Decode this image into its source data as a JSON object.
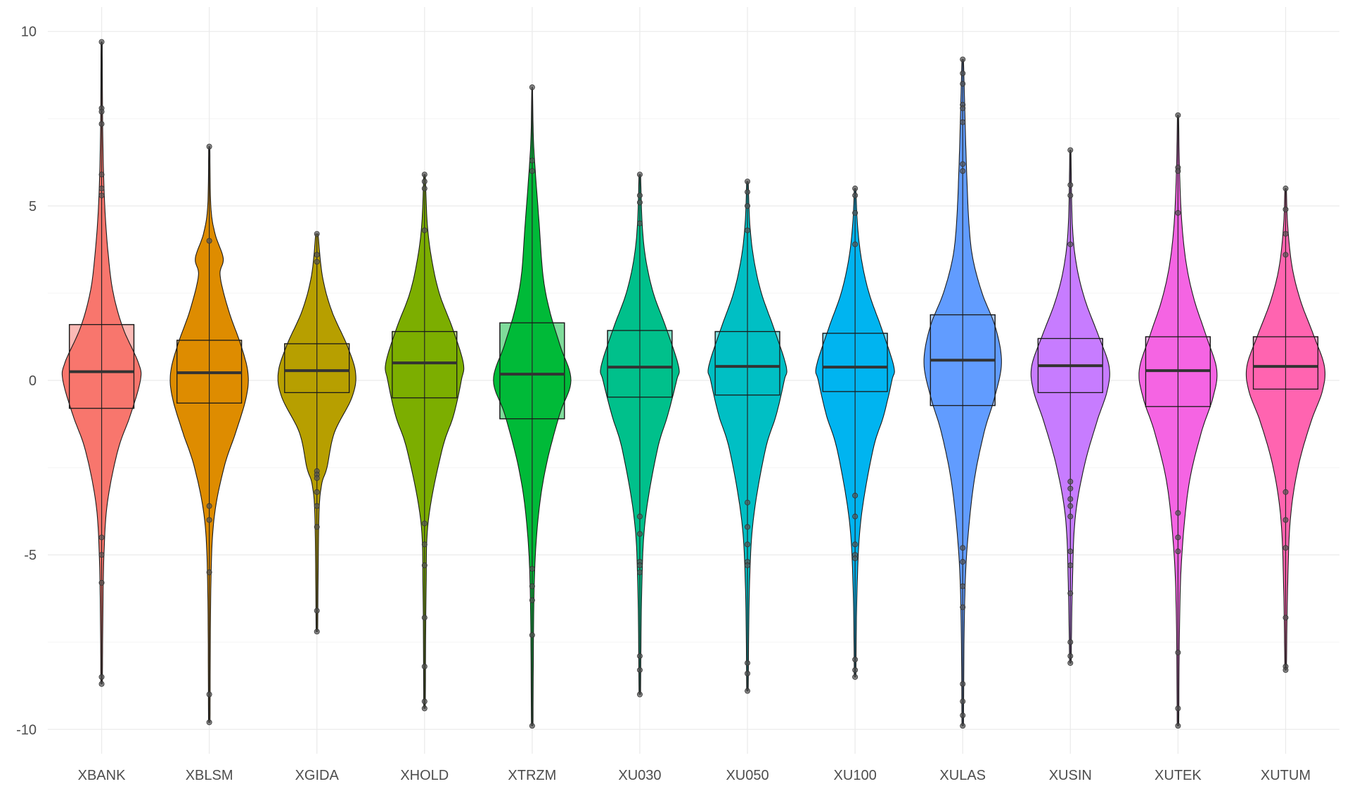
{
  "chart_data": {
    "type": "violin",
    "overlay": [
      "boxplot",
      "jitter-points"
    ],
    "title": "",
    "xlabel": "",
    "ylabel": "",
    "ylim": [
      -10.7,
      10.7
    ],
    "yticks": [
      -10,
      -5,
      0,
      5,
      10
    ],
    "grid": true,
    "legend": "none",
    "categories": [
      "XBANK",
      "XBLSM",
      "XGIDA",
      "XHOLD",
      "XTRZM",
      "XU030",
      "XU050",
      "XU100",
      "XULAS",
      "XUSIN",
      "XUTEK",
      "XUTUM"
    ],
    "colors": [
      "#F8766D",
      "#DE8C00",
      "#B79F00",
      "#7CAE00",
      "#00BA38",
      "#00C08B",
      "#00BFC4",
      "#00B4F0",
      "#619CFF",
      "#C77CFF",
      "#F564E3",
      "#FF64B0"
    ],
    "series": [
      {
        "name": "XBANK",
        "median": 0.25,
        "q1": -0.8,
        "q3": 1.6,
        "whisker_low": -6.2,
        "whisker_high": 5.1,
        "min": -8.7,
        "max": 9.7,
        "outliers": [
          9.7,
          7.8,
          7.7,
          7.35,
          5.9,
          5.5,
          5.3,
          -4.5,
          -5.0,
          -5.8,
          -8.5,
          -8.7
        ],
        "density": [
          [
            -8.7,
            0.02
          ],
          [
            -7.0,
            0.03
          ],
          [
            -5.0,
            0.06
          ],
          [
            -3.5,
            0.15
          ],
          [
            -2.0,
            0.42
          ],
          [
            -1.0,
            0.74
          ],
          [
            0.0,
            1.0
          ],
          [
            0.5,
            0.95
          ],
          [
            1.5,
            0.55
          ],
          [
            2.5,
            0.3
          ],
          [
            3.5,
            0.18
          ],
          [
            5.0,
            0.08
          ],
          [
            7.0,
            0.03
          ],
          [
            9.7,
            0.015
          ]
        ]
      },
      {
        "name": "XBLSM",
        "median": 0.22,
        "q1": -0.65,
        "q3": 1.15,
        "whisker_low": -3.7,
        "whisker_high": 3.6,
        "min": -9.8,
        "max": 6.7,
        "outliers": [
          6.7,
          4.0,
          -3.6,
          -4.0,
          -5.5,
          -9.0,
          -9.8
        ],
        "density": [
          [
            -9.8,
            0.02
          ],
          [
            -6.0,
            0.04
          ],
          [
            -4.0,
            0.12
          ],
          [
            -2.5,
            0.38
          ],
          [
            -1.5,
            0.68
          ],
          [
            -0.5,
            0.95
          ],
          [
            0.2,
            1.0
          ],
          [
            1.0,
            0.82
          ],
          [
            2.0,
            0.5
          ],
          [
            3.0,
            0.28
          ],
          [
            3.5,
            0.36
          ],
          [
            4.2,
            0.15
          ],
          [
            5.0,
            0.04
          ],
          [
            6.7,
            0.015
          ]
        ]
      },
      {
        "name": "XGIDA",
        "median": 0.28,
        "q1": -0.35,
        "q3": 1.05,
        "whisker_low": -2.5,
        "whisker_high": 3.0,
        "min": -7.2,
        "max": 4.2,
        "outliers": [
          4.2,
          3.6,
          3.4,
          -2.6,
          -2.7,
          -2.8,
          -3.2,
          -3.6,
          -4.2,
          -6.6,
          -7.2
        ],
        "density": [
          [
            -7.2,
            0.02
          ],
          [
            -4.0,
            0.05
          ],
          [
            -3.0,
            0.12
          ],
          [
            -2.5,
            0.26
          ],
          [
            -1.5,
            0.45
          ],
          [
            -0.5,
            0.9
          ],
          [
            0.2,
            1.0
          ],
          [
            1.0,
            0.78
          ],
          [
            2.0,
            0.38
          ],
          [
            3.0,
            0.14
          ],
          [
            4.2,
            0.03
          ]
        ]
      },
      {
        "name": "XHOLD",
        "median": 0.5,
        "q1": -0.5,
        "q3": 1.4,
        "whisker_low": -3.4,
        "whisker_high": 4.2,
        "min": -9.4,
        "max": 5.9,
        "outliers": [
          5.9,
          5.7,
          5.5,
          4.3,
          -4.1,
          -4.7,
          -5.3,
          -6.8,
          -8.2,
          -9.2,
          -9.4
        ],
        "density": [
          [
            -9.4,
            0.02
          ],
          [
            -6.0,
            0.04
          ],
          [
            -4.0,
            0.1
          ],
          [
            -2.0,
            0.45
          ],
          [
            -1.0,
            0.75
          ],
          [
            0.0,
            0.95
          ],
          [
            0.5,
            1.0
          ],
          [
            1.5,
            0.72
          ],
          [
            2.5,
            0.38
          ],
          [
            3.5,
            0.18
          ],
          [
            4.5,
            0.07
          ],
          [
            5.9,
            0.02
          ]
        ]
      },
      {
        "name": "XTRZM",
        "median": 0.18,
        "q1": -1.1,
        "q3": 1.65,
        "whisker_low": -5.2,
        "whisker_high": 5.7,
        "min": -9.9,
        "max": 8.4,
        "outliers": [
          8.4,
          6.3,
          6.0,
          -5.4,
          -5.9,
          -6.3,
          -7.3,
          -9.9
        ],
        "density": [
          [
            -9.9,
            0.02
          ],
          [
            -6.0,
            0.05
          ],
          [
            -4.0,
            0.15
          ],
          [
            -2.5,
            0.35
          ],
          [
            -1.0,
            0.7
          ],
          [
            0.0,
            1.0
          ],
          [
            1.0,
            0.72
          ],
          [
            2.0,
            0.45
          ],
          [
            3.0,
            0.28
          ],
          [
            4.5,
            0.18
          ],
          [
            6.0,
            0.08
          ],
          [
            7.0,
            0.03
          ],
          [
            8.4,
            0.01
          ]
        ]
      },
      {
        "name": "XU030",
        "median": 0.38,
        "q1": -0.48,
        "q3": 1.43,
        "whisker_low": -3.3,
        "whisker_high": 4.3,
        "min": -9.0,
        "max": 5.9,
        "outliers": [
          5.9,
          5.3,
          5.1,
          4.5,
          -3.9,
          -4.4,
          -5.2,
          -5.3,
          -5.5,
          -7.9,
          -8.3,
          -9.0
        ],
        "density": [
          [
            -9.0,
            0.02
          ],
          [
            -6.0,
            0.05
          ],
          [
            -4.0,
            0.14
          ],
          [
            -2.0,
            0.45
          ],
          [
            -1.0,
            0.72
          ],
          [
            0.0,
            0.95
          ],
          [
            0.4,
            1.0
          ],
          [
            1.5,
            0.68
          ],
          [
            2.5,
            0.35
          ],
          [
            3.5,
            0.15
          ],
          [
            4.5,
            0.06
          ],
          [
            5.9,
            0.02
          ]
        ]
      },
      {
        "name": "XU050",
        "median": 0.4,
        "q1": -0.42,
        "q3": 1.4,
        "whisker_low": -3.1,
        "whisker_high": 4.0,
        "min": -8.9,
        "max": 5.7,
        "outliers": [
          5.7,
          5.4,
          5.0,
          4.3,
          -3.5,
          -4.2,
          -4.7,
          -5.2,
          -5.3,
          -8.1,
          -8.4,
          -8.9
        ],
        "density": [
          [
            -8.9,
            0.02
          ],
          [
            -6.0,
            0.05
          ],
          [
            -4.0,
            0.15
          ],
          [
            -2.0,
            0.46
          ],
          [
            -1.0,
            0.74
          ],
          [
            0.0,
            0.95
          ],
          [
            0.4,
            1.0
          ],
          [
            1.5,
            0.68
          ],
          [
            2.5,
            0.36
          ],
          [
            3.5,
            0.16
          ],
          [
            4.5,
            0.06
          ],
          [
            5.7,
            0.02
          ]
        ]
      },
      {
        "name": "XU100",
        "median": 0.38,
        "q1": -0.32,
        "q3": 1.35,
        "whisker_low": -3.0,
        "whisker_high": 3.8,
        "min": -8.5,
        "max": 5.5,
        "outliers": [
          5.5,
          5.3,
          4.8,
          3.9,
          -3.3,
          -3.9,
          -4.7,
          -5.0,
          -5.1,
          -8.0,
          -8.3,
          -8.5
        ],
        "density": [
          [
            -8.5,
            0.02
          ],
          [
            -6.0,
            0.05
          ],
          [
            -4.0,
            0.15
          ],
          [
            -2.0,
            0.46
          ],
          [
            -1.0,
            0.74
          ],
          [
            0.0,
            0.95
          ],
          [
            0.4,
            1.0
          ],
          [
            1.5,
            0.68
          ],
          [
            2.5,
            0.36
          ],
          [
            3.5,
            0.16
          ],
          [
            4.5,
            0.06
          ],
          [
            5.5,
            0.02
          ]
        ]
      },
      {
        "name": "XULAS",
        "median": 0.58,
        "q1": -0.72,
        "q3": 1.88,
        "whisker_low": -4.6,
        "whisker_high": 5.5,
        "min": -9.9,
        "max": 9.2,
        "outliers": [
          9.2,
          8.8,
          8.5,
          7.9,
          7.8,
          7.4,
          6.2,
          6.0,
          -4.8,
          -5.2,
          -5.9,
          -6.5,
          -8.7,
          -9.2,
          -9.6,
          -9.9
        ],
        "density": [
          [
            -9.9,
            0.02
          ],
          [
            -7.0,
            0.04
          ],
          [
            -5.0,
            0.1
          ],
          [
            -3.0,
            0.28
          ],
          [
            -1.5,
            0.55
          ],
          [
            -0.5,
            0.82
          ],
          [
            0.5,
            1.0
          ],
          [
            1.5,
            0.85
          ],
          [
            2.5,
            0.5
          ],
          [
            3.5,
            0.26
          ],
          [
            4.5,
            0.16
          ],
          [
            6.0,
            0.1
          ],
          [
            7.5,
            0.06
          ],
          [
            9.2,
            0.02
          ]
        ]
      },
      {
        "name": "XUSIN",
        "median": 0.42,
        "q1": -0.35,
        "q3": 1.2,
        "whisker_low": -2.7,
        "whisker_high": 3.5,
        "min": -8.1,
        "max": 6.6,
        "outliers": [
          6.6,
          5.6,
          5.3,
          3.9,
          -2.9,
          -3.1,
          -3.4,
          -3.6,
          -3.9,
          -4.9,
          -5.3,
          -6.1,
          -7.5,
          -7.9,
          -8.1
        ],
        "density": [
          [
            -8.1,
            0.02
          ],
          [
            -6.0,
            0.05
          ],
          [
            -4.0,
            0.12
          ],
          [
            -2.5,
            0.35
          ],
          [
            -1.2,
            0.68
          ],
          [
            -0.3,
            0.95
          ],
          [
            0.4,
            1.0
          ],
          [
            1.3,
            0.72
          ],
          [
            2.3,
            0.38
          ],
          [
            3.3,
            0.16
          ],
          [
            4.5,
            0.05
          ],
          [
            6.6,
            0.015
          ]
        ]
      },
      {
        "name": "XUTEK",
        "median": 0.28,
        "q1": -0.75,
        "q3": 1.25,
        "whisker_low": -3.6,
        "whisker_high": 4.1,
        "min": -9.9,
        "max": 7.6,
        "outliers": [
          7.6,
          6.1,
          6.0,
          4.8,
          -3.8,
          -4.5,
          -4.9,
          -7.8,
          -9.4,
          -9.9
        ],
        "density": [
          [
            -9.9,
            0.02
          ],
          [
            -7.0,
            0.04
          ],
          [
            -5.0,
            0.1
          ],
          [
            -3.0,
            0.28
          ],
          [
            -1.5,
            0.6
          ],
          [
            -0.5,
            0.9
          ],
          [
            0.3,
            1.0
          ],
          [
            1.3,
            0.72
          ],
          [
            2.3,
            0.42
          ],
          [
            3.3,
            0.22
          ],
          [
            4.5,
            0.1
          ],
          [
            6.0,
            0.04
          ],
          [
            7.6,
            0.015
          ]
        ]
      },
      {
        "name": "XUTUM",
        "median": 0.4,
        "q1": -0.25,
        "q3": 1.25,
        "whisker_low": -3.0,
        "whisker_high": 3.6,
        "min": -8.3,
        "max": 5.5,
        "outliers": [
          5.5,
          4.9,
          4.2,
          3.6,
          -3.2,
          -4.0,
          -4.8,
          -6.8,
          -8.2,
          -8.3
        ],
        "density": [
          [
            -8.3,
            0.02
          ],
          [
            -6.0,
            0.05
          ],
          [
            -4.0,
            0.12
          ],
          [
            -2.5,
            0.32
          ],
          [
            -1.2,
            0.65
          ],
          [
            -0.3,
            0.95
          ],
          [
            0.4,
            1.0
          ],
          [
            1.3,
            0.72
          ],
          [
            2.3,
            0.38
          ],
          [
            3.3,
            0.16
          ],
          [
            4.5,
            0.05
          ],
          [
            5.5,
            0.02
          ]
        ]
      }
    ]
  }
}
